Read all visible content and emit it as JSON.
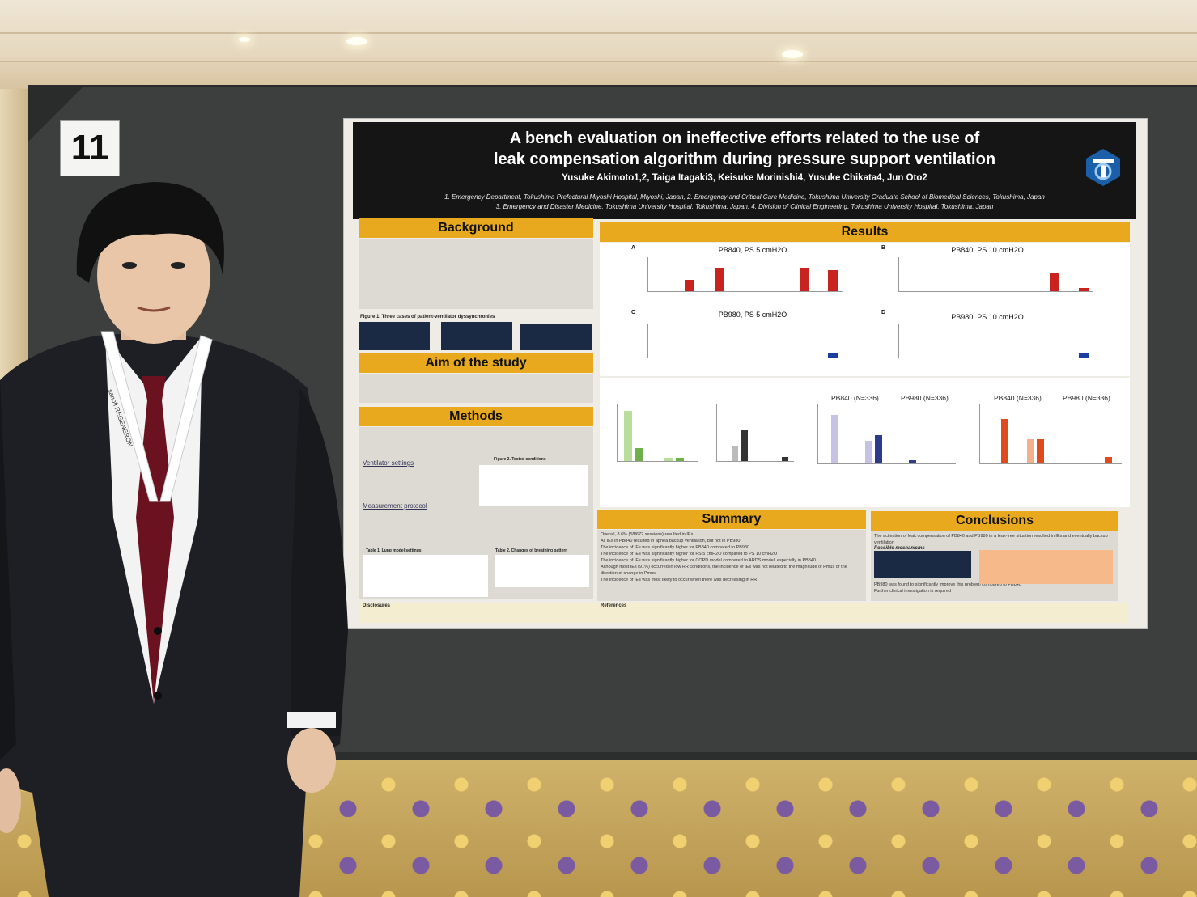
{
  "booth": {
    "number": "11"
  },
  "lanyard": {
    "text": "sanofi REGENERON"
  },
  "poster": {
    "title_line1": "A bench evaluation on ineffective efforts related to the use of",
    "title_line2": "leak compensation algorithm during pressure support ventilation",
    "authors": "Yusuke Akimoto1,2, Taiga Itagaki3, Keisuke Morinishi4, Yusuke Chikata4, Jun Oto2",
    "affiliations_line1": "1. Emergency Department, Tokushima Prefectural Miyoshi Hospital, Miyoshi, Japan, 2. Emergency and Critical Care Medicine, Tokushima University Graduate School of Biomedical Sciences, Tokushima, Japan",
    "affiliations_line2": "3. Emergency and Disaster Medicine, Tokushima University Hospital, Tokushima, Japan, 4. Division of Clinical Engineering, Tokushima University Hospital, Tokushima, Japan",
    "sections": {
      "background": "Background",
      "aim": "Aim of the study",
      "methods": "Methods",
      "results": "Results",
      "summary": "Summary",
      "conclusions": "Conclusions"
    },
    "figure1_caption": "Figure 1. Three cases of patient-ventilator dyssynchronies",
    "ventilator_settings": "Ventilator settings",
    "measurement_protocol": "Measurement protocol",
    "table1_caption": "Table 1. Lung model settings",
    "table2_caption": "Table 2. Changes of breathing pattern",
    "figure2_caption": "Figure 2. Tested conditions",
    "disclosures": "Disclosures",
    "references": "References",
    "chart_titles": {
      "a": "PB840, PS 5 cmH2O",
      "b": "PB840, PS 10 cmH2O",
      "c": "PB980, PS 5 cmH2O",
      "d": "PB980, PS 10 cmH2O"
    },
    "chart_letters": {
      "a": "A",
      "b": "B",
      "c": "C",
      "d": "D"
    },
    "group_titles": {
      "g1": "PB840 (N=336)",
      "g2": "PB980 (N=336)",
      "g3": "PB840 (N=336)",
      "g4": "PB980 (N=336)"
    },
    "summary_points": [
      "Overall, 8.6% (58/672 sessions) resulted in IEs",
      "All IEs in PB840 resulted in apnea backup ventilation, but not in PB980",
      "The incidence of IEs was significantly higher for PB840 compared to PB980",
      "The incidence of IEs was significantly higher for PS 5 cmH2O compared to PS 10 cmH2O",
      "The incidence of IEs was significantly higher for COPD model compared to ARDS model, especially in PB840",
      "Although most IEs (91%) occurred in low RR conditions, the incidence of IEs was not related to the magnitude of Pmus or the direction of change in Pmus",
      "The incidence of IEs was most likely to occur when there was decreasing in RR"
    ],
    "conclusion_points": [
      "The activation of leak compensation of PB840 and PB980 in a leak-free situation resulted in IEs and eventually backup ventilation",
      "PB980 was found to significantly improve this problem compared to PB840",
      "Further clinical investigation is required"
    ],
    "possible_mechanisms": "Possible mechanisms"
  },
  "colors": {
    "poster_accent": "#e8a91f",
    "header": "#151515",
    "bar_red": "#c9231f",
    "board": "#3c3f3d"
  }
}
